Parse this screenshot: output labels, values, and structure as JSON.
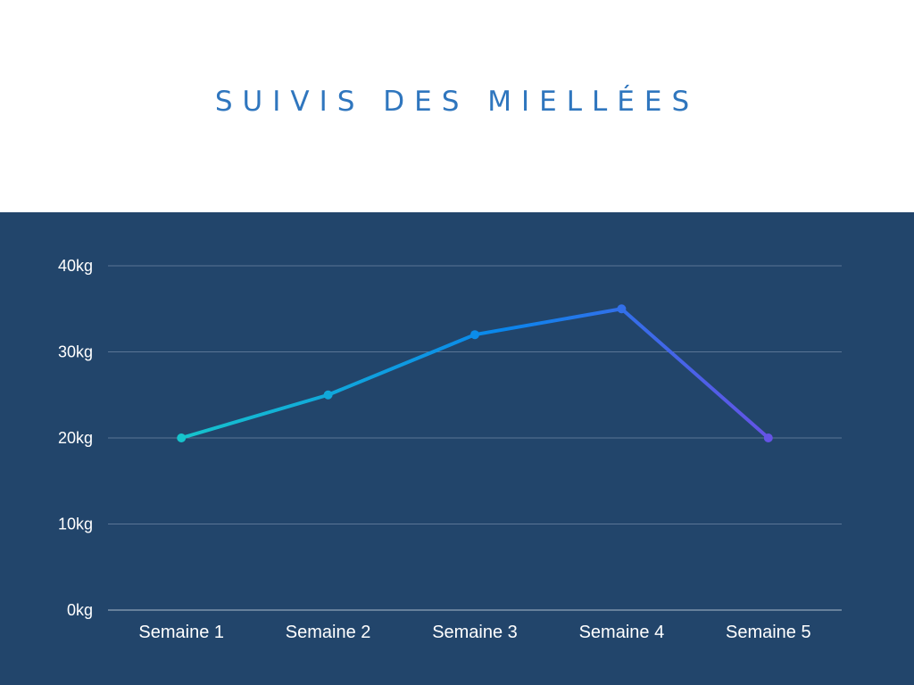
{
  "chart_data": {
    "type": "line",
    "title": "SUIVIS DES MIELLÉES",
    "xlabel": "",
    "ylabel": "",
    "categories": [
      "Semaine 1",
      "Semaine 2",
      "Semaine 3",
      "Semaine 4",
      "Semaine 5"
    ],
    "series": [
      {
        "values": [
          20,
          25,
          32,
          35,
          20
        ]
      }
    ],
    "yticks": [
      {
        "value": 0,
        "label": "0kg"
      },
      {
        "value": 10,
        "label": "10kg"
      },
      {
        "value": 20,
        "label": "20kg"
      },
      {
        "value": 30,
        "label": "30kg"
      },
      {
        "value": 40,
        "label": "40kg"
      }
    ],
    "ylim": [
      0,
      40
    ],
    "grid": true,
    "colors": {
      "header_background": "#ffffff",
      "panel_background": "#22456b",
      "title": "#2f76be",
      "gridline": "#5a7596",
      "line_gradient": [
        "#16c4cc",
        "#0a86ec",
        "#6553e6"
      ]
    }
  }
}
